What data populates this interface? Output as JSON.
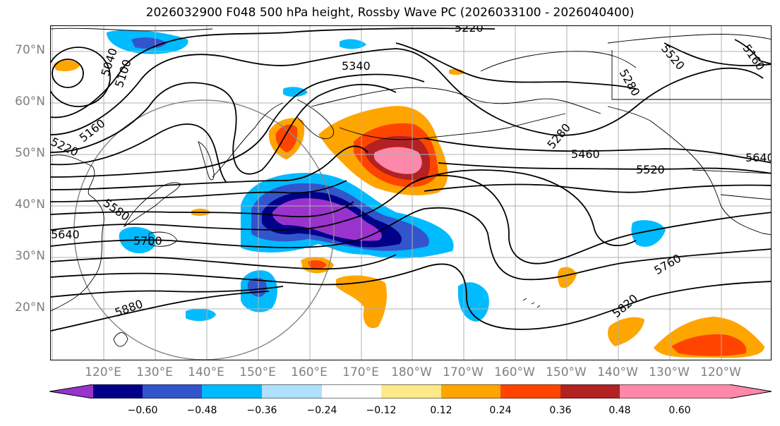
{
  "title": "2026032900 F048 500 hPa height, Rossby Wave PC (2026033100 - 2026040400)",
  "latitude_labels": [
    "70°N",
    "60°N",
    "50°N",
    "40°N",
    "30°N",
    "20°N"
  ],
  "longitude_labels": [
    "120°E",
    "130°E",
    "140°E",
    "150°E",
    "160°E",
    "170°E",
    "180°W",
    "170°W",
    "160°W",
    "150°W",
    "140°W",
    "130°W",
    "120°W"
  ],
  "contour_labels": [
    "5220",
    "5340",
    "5280",
    "5520",
    "5280",
    "5460",
    "5520",
    "5040",
    "5100",
    "5160",
    "5220",
    "5580",
    "5700",
    "5640",
    "5760",
    "5820",
    "5880",
    "5640",
    "5160"
  ],
  "colorbar": {
    "ticks": [
      "−0.60",
      "−0.48",
      "−0.36",
      "−0.24",
      "−0.12",
      "0.12",
      "0.24",
      "0.36",
      "0.48",
      "0.60"
    ],
    "colors": [
      "#9933cc",
      "#000088",
      "#3355cc",
      "#00bbff",
      "#b0e0ff",
      "#ffffff",
      "#ffe888",
      "#ffa500",
      "#ff4400",
      "#b22222",
      "#ff88aa"
    ]
  },
  "colors": {
    "anomaly_purple": "#9933cc",
    "anomaly_navy": "#000088",
    "anomaly_blue": "#3355cc",
    "anomaly_cyan": "#00bbff",
    "anomaly_lightblue": "#b0e0ff",
    "anomaly_yellow": "#ffe888",
    "anomaly_orange": "#ffa500",
    "anomaly_redorange": "#ff4400",
    "anomaly_darkred": "#b22222",
    "anomaly_pink": "#ff88aa",
    "contour": "#000000",
    "grid": "#b0b0b0",
    "axis_labels": "#808080"
  }
}
